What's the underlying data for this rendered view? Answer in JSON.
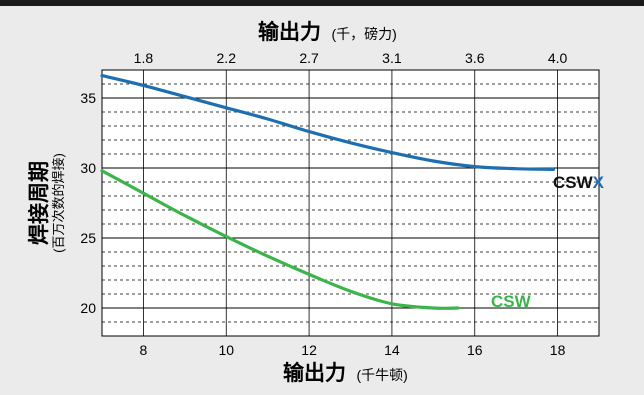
{
  "chart_data": {
    "type": "line",
    "x_bottom": {
      "title": "输出力",
      "unit": "(千牛顿)",
      "range": [
        7,
        19
      ],
      "ticks": [
        8,
        10,
        12,
        14,
        16,
        18
      ]
    },
    "x_top": {
      "title": "输出力",
      "unit": "(千，磅力)",
      "ticks": [
        {
          "label": "1.8",
          "at_kn": 8
        },
        {
          "label": "2.2",
          "at_kn": 10
        },
        {
          "label": "2.7",
          "at_kn": 12
        },
        {
          "label": "3.1",
          "at_kn": 14
        },
        {
          "label": "3.6",
          "at_kn": 16
        },
        {
          "label": "4.0",
          "at_kn": 18
        }
      ]
    },
    "y": {
      "title": "焊接周期",
      "unit": "(百万次数的焊接)",
      "range": [
        18,
        37
      ],
      "ticks": [
        20,
        25,
        30,
        35
      ]
    },
    "grid": true,
    "series": [
      {
        "name_parts": [
          "CSW",
          "X"
        ],
        "color": "#1f6fb0",
        "accent": "#1f6fb0",
        "x": [
          7,
          8,
          9,
          10,
          11,
          12,
          13,
          14,
          15,
          16,
          17,
          17.9
        ],
        "y": [
          36.6,
          35.9,
          35.1,
          34.3,
          33.5,
          32.6,
          31.8,
          31.1,
          30.5,
          30.1,
          29.95,
          29.9
        ]
      },
      {
        "name_parts": [
          "CSW"
        ],
        "color": "#3cb44b",
        "x": [
          7,
          8,
          9,
          10,
          11,
          12,
          13,
          14,
          15,
          15.6
        ],
        "y": [
          29.8,
          28.2,
          26.6,
          25.1,
          23.7,
          22.4,
          21.2,
          20.3,
          20.0,
          20.0
        ]
      }
    ]
  }
}
